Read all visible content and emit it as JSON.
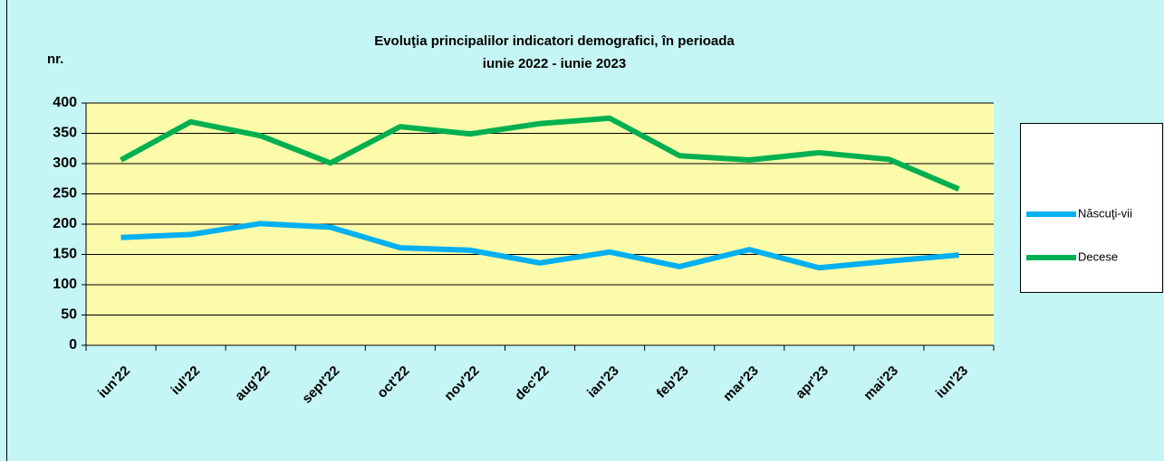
{
  "chart_data": {
    "type": "line",
    "title": [
      "Evoluţia principalilor  indicatori demografici, în perioada",
      "iunie 2022 - iunie 2023"
    ],
    "y_label": "nr.",
    "categories": [
      "iun'22",
      "iul'22",
      "aug'22",
      "sept'22",
      "oct'22",
      "nov'22",
      "dec'22",
      "ian'23",
      "feb'23",
      "mar'23",
      "apr'23",
      "mai'23",
      "iun'23"
    ],
    "series": [
      {
        "name": "Născuţi-vii",
        "color": "#00b0f0",
        "values": [
          178,
          183,
          201,
          195,
          161,
          157,
          136,
          154,
          130,
          158,
          128,
          139,
          149
        ]
      },
      {
        "name": "Decese",
        "color": "#00b050",
        "values": [
          306,
          369,
          346,
          301,
          361,
          349,
          366,
          375,
          313,
          306,
          318,
          307,
          258
        ]
      }
    ],
    "ylim": [
      0,
      400
    ],
    "yticks": [
      0,
      50,
      100,
      150,
      200,
      250,
      300,
      350,
      400
    ],
    "grid": true,
    "legend": "right"
  }
}
